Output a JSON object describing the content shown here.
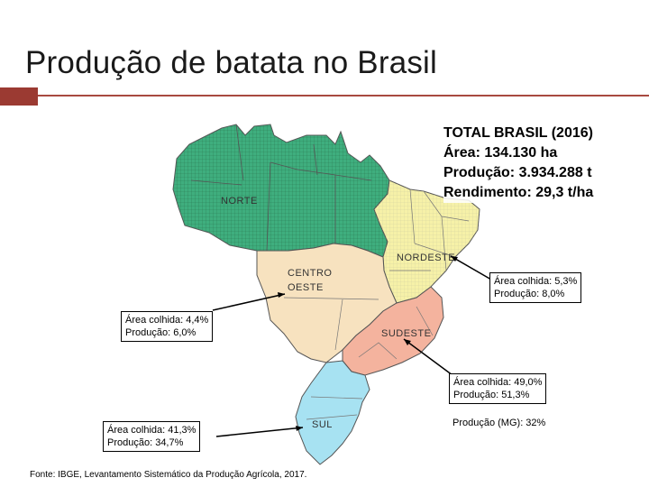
{
  "title": "Produção de batata no Brasil",
  "totals": {
    "heading": "TOTAL BRASIL (2016)",
    "area": "Área: 134.130 ha",
    "production": "Produção: 3.934.288 t",
    "yield": "Rendimento: 29,3 t/ha"
  },
  "regions": {
    "norte": {
      "label": "NORTE",
      "color": "#3fae7e"
    },
    "nordeste": {
      "label": "NORDESTE",
      "color": "#f6f1a8"
    },
    "centro_oeste": {
      "label_line1": "CENTRO",
      "label_line2": "OESTE",
      "color": "#f7e2bf",
      "area_line": "Área colhida: 4,4%",
      "production_line": "Produção: 6,0%"
    },
    "sudeste": {
      "label": "SUDESTE",
      "color": "#f4b39e",
      "area_line": "Área colhida: 49,0%",
      "production_line": "Produção: 51,3%",
      "mg_note": "Produção (MG): 32%"
    },
    "sul": {
      "label": "SUL",
      "color": "#a7e2f2",
      "area_line": "Área colhida: 41,3%",
      "production_line": "Produção: 34,7%"
    },
    "nordeste_stats": {
      "area_line": "Área colhida: 5,3%",
      "production_line": "Produção: 8,0%"
    }
  },
  "source": "Fonte: IBGE, Levantamento Sistemático da Produção Agrícola, 2017."
}
